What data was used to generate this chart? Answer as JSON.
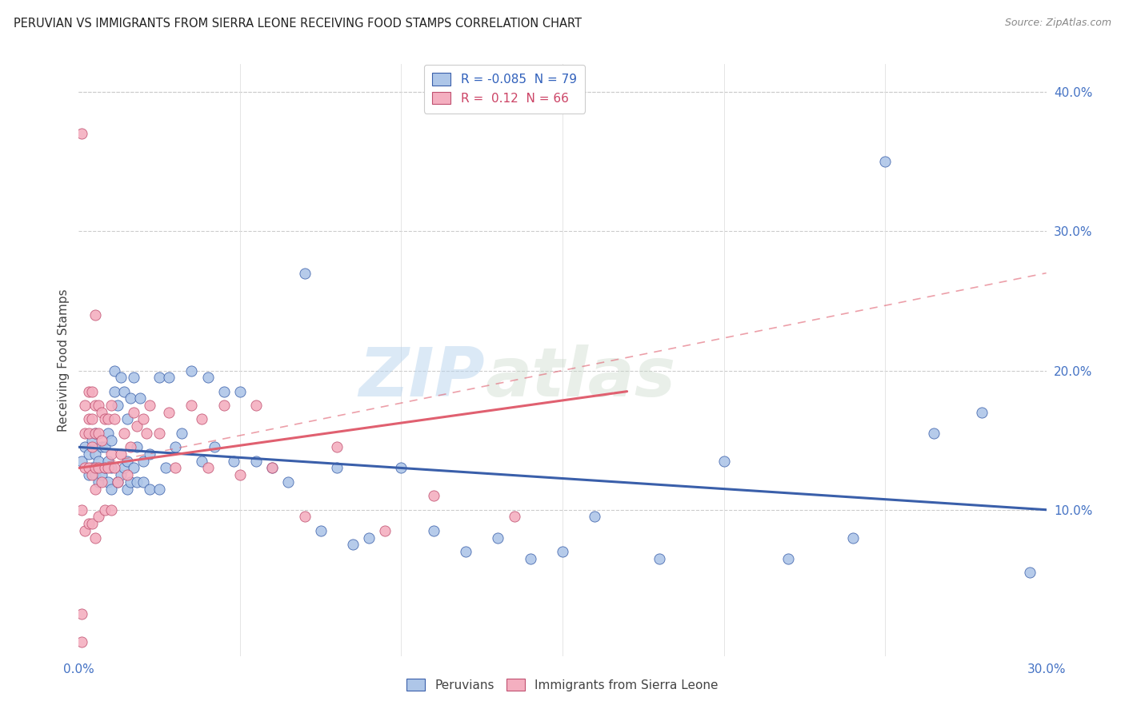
{
  "title": "PERUVIAN VS IMMIGRANTS FROM SIERRA LEONE RECEIVING FOOD STAMPS CORRELATION CHART",
  "source": "Source: ZipAtlas.com",
  "ylabel_label": "Receiving Food Stamps",
  "legend_label1": "Peruvians",
  "legend_label2": "Immigrants from Sierra Leone",
  "R1": -0.085,
  "N1": 79,
  "R2": 0.12,
  "N2": 66,
  "color1": "#aec6e8",
  "color2": "#f4afc0",
  "line_color1": "#3a5faa",
  "line_color2": "#e06070",
  "xlim": [
    0.0,
    0.3
  ],
  "ylim": [
    -0.005,
    0.42
  ],
  "xtick_labels": [
    "0.0%",
    "30.0%"
  ],
  "xtick_positions": [
    0.0,
    0.3
  ],
  "yticks_right": [
    0.1,
    0.2,
    0.3,
    0.4
  ],
  "watermark_zip": "ZIP",
  "watermark_atlas": "atlas",
  "blue_x": [
    0.001,
    0.002,
    0.003,
    0.003,
    0.004,
    0.004,
    0.005,
    0.005,
    0.005,
    0.006,
    0.006,
    0.007,
    0.007,
    0.008,
    0.008,
    0.009,
    0.009,
    0.009,
    0.01,
    0.01,
    0.01,
    0.011,
    0.011,
    0.012,
    0.012,
    0.013,
    0.013,
    0.014,
    0.014,
    0.015,
    0.015,
    0.015,
    0.016,
    0.016,
    0.017,
    0.017,
    0.018,
    0.018,
    0.019,
    0.02,
    0.02,
    0.022,
    0.022,
    0.025,
    0.025,
    0.027,
    0.028,
    0.03,
    0.032,
    0.035,
    0.038,
    0.04,
    0.042,
    0.045,
    0.048,
    0.05,
    0.055,
    0.06,
    0.065,
    0.07,
    0.075,
    0.08,
    0.085,
    0.09,
    0.1,
    0.11,
    0.12,
    0.13,
    0.14,
    0.15,
    0.16,
    0.18,
    0.2,
    0.22,
    0.24,
    0.25,
    0.265,
    0.28,
    0.295
  ],
  "blue_y": [
    0.135,
    0.145,
    0.125,
    0.14,
    0.13,
    0.15,
    0.125,
    0.14,
    0.155,
    0.12,
    0.135,
    0.125,
    0.145,
    0.13,
    0.145,
    0.12,
    0.135,
    0.155,
    0.115,
    0.13,
    0.15,
    0.2,
    0.185,
    0.12,
    0.175,
    0.125,
    0.195,
    0.13,
    0.185,
    0.115,
    0.135,
    0.165,
    0.12,
    0.18,
    0.13,
    0.195,
    0.12,
    0.145,
    0.18,
    0.12,
    0.135,
    0.115,
    0.14,
    0.115,
    0.195,
    0.13,
    0.195,
    0.145,
    0.155,
    0.2,
    0.135,
    0.195,
    0.145,
    0.185,
    0.135,
    0.185,
    0.135,
    0.13,
    0.12,
    0.27,
    0.085,
    0.13,
    0.075,
    0.08,
    0.13,
    0.085,
    0.07,
    0.08,
    0.065,
    0.07,
    0.095,
    0.065,
    0.135,
    0.065,
    0.08,
    0.35,
    0.155,
    0.17,
    0.055
  ],
  "pink_x": [
    0.001,
    0.001,
    0.001,
    0.001,
    0.002,
    0.002,
    0.002,
    0.002,
    0.003,
    0.003,
    0.003,
    0.003,
    0.003,
    0.004,
    0.004,
    0.004,
    0.004,
    0.004,
    0.005,
    0.005,
    0.005,
    0.005,
    0.005,
    0.005,
    0.006,
    0.006,
    0.006,
    0.006,
    0.007,
    0.007,
    0.007,
    0.008,
    0.008,
    0.008,
    0.009,
    0.009,
    0.01,
    0.01,
    0.01,
    0.011,
    0.011,
    0.012,
    0.013,
    0.014,
    0.015,
    0.016,
    0.017,
    0.018,
    0.02,
    0.021,
    0.022,
    0.025,
    0.028,
    0.03,
    0.035,
    0.038,
    0.04,
    0.045,
    0.05,
    0.055,
    0.06,
    0.07,
    0.08,
    0.095,
    0.11,
    0.135
  ],
  "pink_y": [
    0.005,
    0.025,
    0.1,
    0.37,
    0.085,
    0.13,
    0.155,
    0.175,
    0.09,
    0.13,
    0.155,
    0.165,
    0.185,
    0.09,
    0.125,
    0.145,
    0.165,
    0.185,
    0.08,
    0.115,
    0.13,
    0.155,
    0.175,
    0.24,
    0.095,
    0.13,
    0.155,
    0.175,
    0.12,
    0.15,
    0.17,
    0.1,
    0.13,
    0.165,
    0.13,
    0.165,
    0.1,
    0.14,
    0.175,
    0.13,
    0.165,
    0.12,
    0.14,
    0.155,
    0.125,
    0.145,
    0.17,
    0.16,
    0.165,
    0.155,
    0.175,
    0.155,
    0.17,
    0.13,
    0.175,
    0.165,
    0.13,
    0.175,
    0.125,
    0.175,
    0.13,
    0.095,
    0.145,
    0.085,
    0.11,
    0.095
  ],
  "blue_trend_x": [
    0.0,
    0.3
  ],
  "blue_trend_y": [
    0.145,
    0.1
  ],
  "pink_trend_x": [
    0.0,
    0.17
  ],
  "pink_trend_y": [
    0.13,
    0.185
  ],
  "pink_dash_trend_x": [
    0.0,
    0.3
  ],
  "pink_dash_trend_y": [
    0.13,
    0.27
  ]
}
